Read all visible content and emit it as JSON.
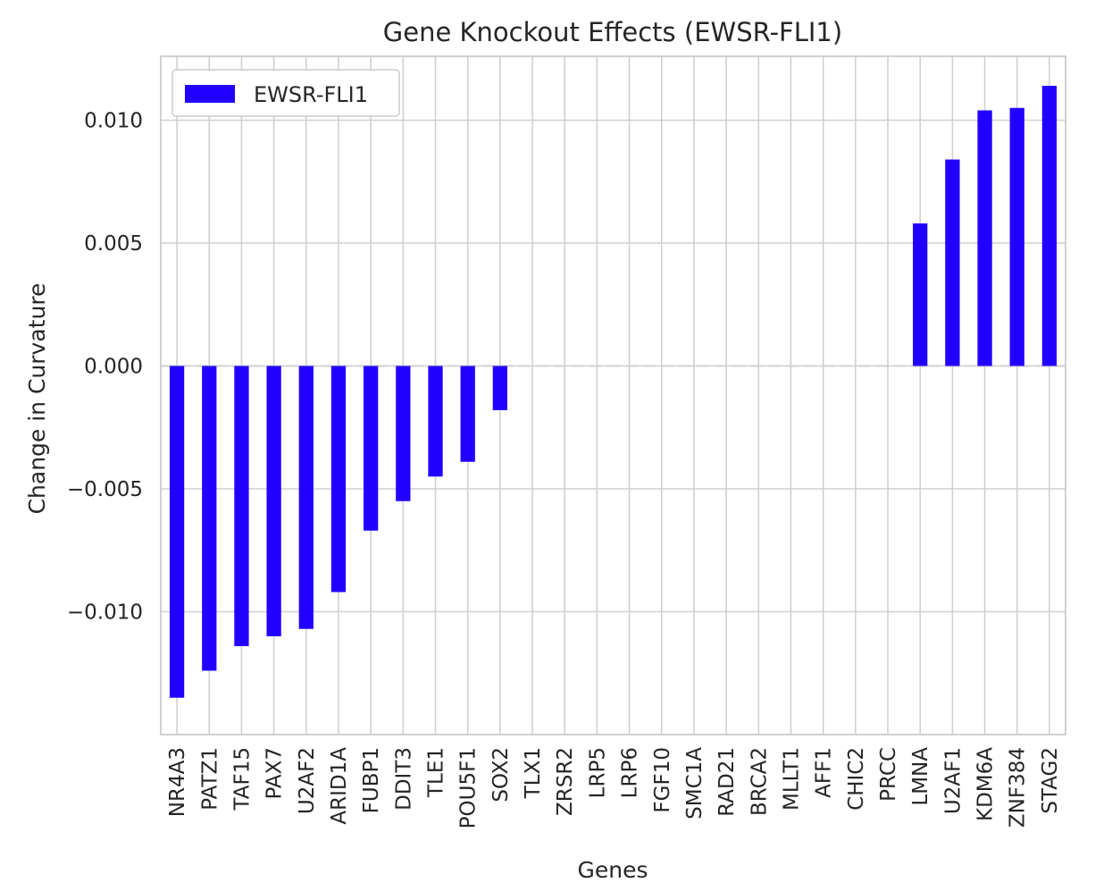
{
  "chart_data": {
    "type": "bar",
    "title": "Gene Knockout Effects (EWSR-FLI1)",
    "xlabel": "Genes",
    "ylabel": "Change in Curvature",
    "categories": [
      "NR4A3",
      "PATZ1",
      "TAF15",
      "PAX7",
      "U2AF2",
      "ARID1A",
      "FUBP1",
      "DDIT3",
      "TLE1",
      "POU5F1",
      "SOX2",
      "TLX1",
      "ZRSR2",
      "LRP5",
      "LRP6",
      "FGF10",
      "SMC1A",
      "RAD21",
      "BRCA2",
      "MLLT1",
      "AFF1",
      "CHIC2",
      "PRCC",
      "LMNA",
      "U2AF1",
      "KDM6A",
      "ZNF384",
      "STAG2"
    ],
    "series": [
      {
        "name": "EWSR-FLI1",
        "color": "#2200ff",
        "values": [
          -0.0135,
          -0.0124,
          -0.0114,
          -0.011,
          -0.0107,
          -0.0092,
          -0.0067,
          -0.0055,
          -0.0045,
          -0.0039,
          -0.0018,
          0,
          0,
          0,
          0,
          0,
          0,
          0,
          0,
          0,
          0,
          0,
          0,
          0.0058,
          0.0084,
          0.0104,
          0.0105,
          0.0114
        ]
      }
    ],
    "ylim": [
      -0.015,
      0.0126
    ],
    "yticks": [
      0.01,
      0.005,
      0.0,
      -0.005,
      -0.01
    ],
    "ytick_labels": [
      "0.010",
      "0.005",
      "0.000",
      "−0.005",
      "−0.010"
    ],
    "grid": true,
    "legend": "top-left",
    "baseline_color": "#d0d0d0"
  }
}
